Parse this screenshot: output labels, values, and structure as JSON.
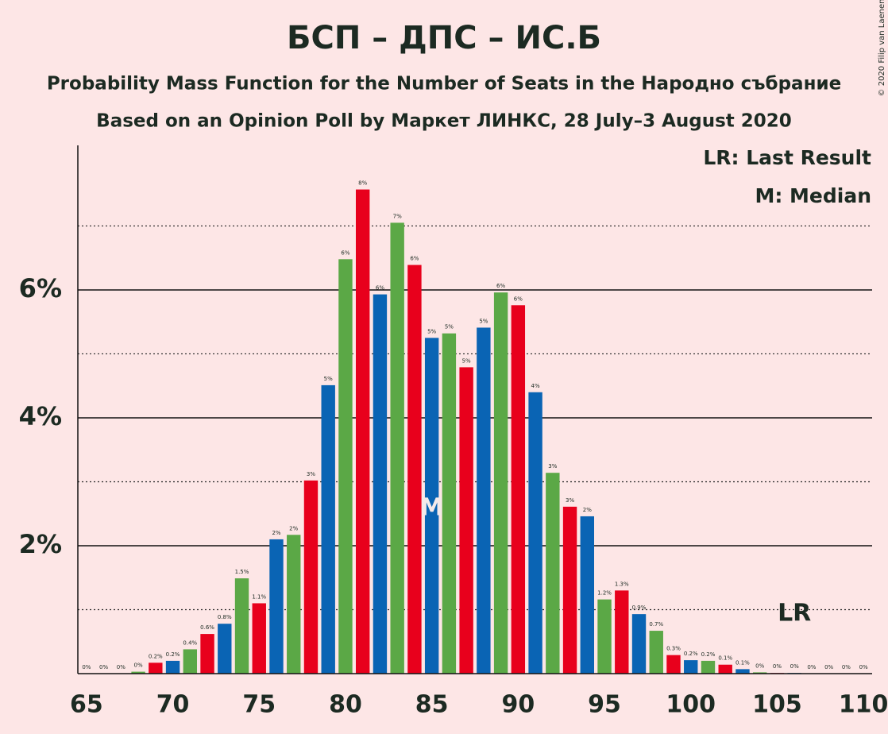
{
  "chart_data": {
    "type": "bar",
    "title": "БСП – ДПС – ИС.Б",
    "subtitle": "Probability Mass Function for the Number of Seats in the Народно събрание",
    "subtitle2": "Based on an Opinion Poll by Маркет ЛИНКС, 28 July–3 August 2020",
    "copyright": "© 2020 Filip van Laenen",
    "legend": [
      "LR: Last Result",
      "M: Median"
    ],
    "median": {
      "value": 85,
      "label": "M"
    },
    "last_result": {
      "value": 106,
      "label": "LR"
    },
    "x": [
      65,
      66,
      67,
      68,
      69,
      70,
      71,
      72,
      73,
      74,
      75,
      76,
      77,
      78,
      79,
      80,
      81,
      82,
      83,
      84,
      85,
      86,
      87,
      88,
      89,
      90,
      91,
      92,
      93,
      94,
      95,
      96,
      97,
      98,
      99,
      100,
      101,
      102,
      103,
      104,
      105,
      106,
      107,
      108,
      109,
      110
    ],
    "values": [
      0,
      0,
      0,
      0.03,
      0.17,
      0.2,
      0.38,
      0.62,
      0.78,
      1.49,
      1.1,
      2.1,
      2.17,
      3.02,
      4.51,
      6.48,
      7.57,
      5.93,
      7.05,
      6.39,
      5.25,
      5.32,
      4.79,
      5.41,
      5.96,
      5.76,
      4.4,
      3.14,
      2.61,
      2.46,
      1.16,
      1.3,
      0.93,
      0.67,
      0.29,
      0.21,
      0.2,
      0.14,
      0.07,
      0.02,
      0.01,
      0.01,
      0,
      0,
      0,
      0
    ],
    "value_labels": [
      "0%",
      "0%",
      "0%",
      "0%",
      "0.2%",
      "0.2%",
      "0.4%",
      "0.6%",
      "0.8%",
      "1.5%",
      "1.1%",
      "2%",
      "2%",
      "3%",
      "5%",
      "6%",
      "8%",
      "6%",
      "7%",
      "6%",
      "5%",
      "5%",
      "5%",
      "5%",
      "6%",
      "6%",
      "4%",
      "3%",
      "3%",
      "2%",
      "1.2%",
      "1.3%",
      "0.9%",
      "0.7%",
      "0.3%",
      "0.2%",
      "0.2%",
      "0.1%",
      "0.1%",
      "0%",
      "0%",
      "0%",
      "0%",
      "0%",
      "0%",
      "0%"
    ],
    "colors": [
      "#5ba846",
      "#e8001c",
      "#0a64b4"
    ],
    "xlim": [
      64.5,
      110.5
    ],
    "xticks": [
      65,
      70,
      75,
      80,
      85,
      90,
      95,
      100,
      105,
      110
    ],
    "ylim": [
      0,
      8.26
    ],
    "yticks": [
      {
        "value": 2,
        "label": "2%"
      },
      {
        "value": 4,
        "label": "4%"
      },
      {
        "value": 6,
        "label": "6%"
      }
    ],
    "minor_yticks": [
      1,
      3,
      5,
      7
    ],
    "grid": true
  }
}
